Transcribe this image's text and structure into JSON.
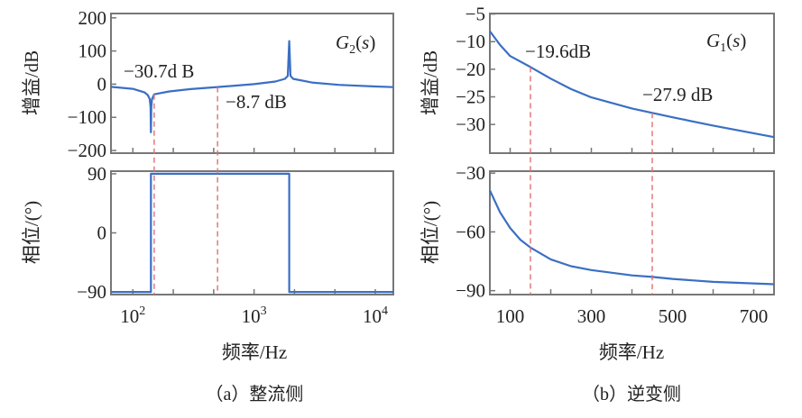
{
  "chart_data": [
    {
      "type": "line",
      "caption": "（a）整流侧",
      "xlabel": "频率/Hz",
      "xscale": "log",
      "xlim": [
        66,
        14100
      ],
      "xtick_labels": [
        {
          "base": "10",
          "exp": "2",
          "value": 100
        },
        {
          "base": "10",
          "exp": "3",
          "value": 1000
        },
        {
          "base": "10",
          "exp": "4",
          "value": 10000
        }
      ],
      "panels": [
        {
          "ylabel": "增益/dB",
          "ylim": [
            -208,
            213
          ],
          "yticks": [
            200,
            100,
            0,
            -100,
            -200
          ],
          "ytick_labels": [
            "200",
            "100",
            "0",
            "−100",
            "−200"
          ],
          "series": [
            {
              "name": "G2(s)",
              "x": [
                66,
                100,
                125,
                133,
                138,
                140,
                141,
                142,
                144,
                150,
                200,
                300,
                500,
                1000,
                1500,
                1800,
                1900,
                1950,
                2000,
                2100,
                3000,
                5000,
                10000,
                14100
              ],
              "y": [
                -8,
                -14,
                -25,
                -33,
                -45,
                -70,
                -145,
                -70,
                -45,
                -30.7,
                -22,
                -15,
                -8.7,
                0,
                8,
                16,
                25,
                130,
                25,
                16,
                5,
                -2,
                -7,
                -9
              ]
            }
          ],
          "label": "G2(s)",
          "annotations": [
            {
              "text": "−30.7d B",
              "x": 150,
              "y": -30.7
            },
            {
              "text": "−8.7 dB",
              "x": 500,
              "y": -8.7
            }
          ]
        },
        {
          "ylabel": "相位/(°)",
          "ylim": [
            -94,
            94
          ],
          "yticks": [
            90,
            0,
            -90
          ],
          "ytick_labels": [
            "90",
            "0",
            "−90"
          ],
          "series": [
            {
              "x": [
                66,
                141,
                141,
                1950,
                1950,
                14100
              ],
              "y": [
                -90,
                -90,
                90,
                90,
                -90,
                -90
              ]
            }
          ]
        }
      ],
      "markers_hz": [
        150,
        500
      ],
      "colors": {
        "curve": "#3a6fc4",
        "marker": "#e07070",
        "axis": "#777777"
      }
    },
    {
      "type": "line",
      "caption": "（b）逆变侧",
      "xlabel": "频率/Hz",
      "xscale": "linear",
      "xlim": [
        50,
        750
      ],
      "xticks": [
        100,
        300,
        500,
        700
      ],
      "xtick_labels": [
        "100",
        "300",
        "500",
        "700"
      ],
      "panels": [
        {
          "ylabel": "增益/dB",
          "ylim": [
            -35.2,
            -9.9
          ],
          "ytick_labels": [
            "−5",
            "−10",
            "−20",
            "−25",
            "−30"
          ],
          "series": [
            {
              "name": "G1(s)",
              "x": [
                50,
                75,
                100,
                150,
                200,
                250,
                300,
                400,
                450,
                500,
                600,
                700,
                750
              ],
              "y": [
                -13.1,
                -15.6,
                -17.6,
                -19.6,
                -21.7,
                -23.6,
                -25.1,
                -27.1,
                -27.9,
                -28.7,
                -30.2,
                -31.6,
                -32.3
              ]
            }
          ],
          "label": "G1(s)",
          "annotations": [
            {
              "text": "−19.6dB",
              "x": 150,
              "y": -19.6
            },
            {
              "text": "−27.9 dB",
              "x": 450,
              "y": -27.9
            }
          ]
        },
        {
          "ylabel": "相位/(°)",
          "ylim": [
            -92,
            -29
          ],
          "yticks": [
            -30,
            -60,
            -90
          ],
          "ytick_labels": [
            "−30",
            "−60",
            "−90"
          ],
          "series": [
            {
              "x": [
                50,
                75,
                100,
                125,
                150,
                200,
                250,
                300,
                400,
                450,
                500,
                600,
                700,
                750
              ],
              "y": [
                -38.8,
                -50,
                -58,
                -64,
                -68,
                -74,
                -77.5,
                -79.5,
                -82.2,
                -83,
                -84,
                -85.5,
                -86.3,
                -86.7
              ]
            }
          ]
        }
      ],
      "markers_hz": [
        150,
        450
      ],
      "colors": {
        "curve": "#3a6fc4",
        "marker": "#e07070",
        "axis": "#777777"
      }
    }
  ]
}
